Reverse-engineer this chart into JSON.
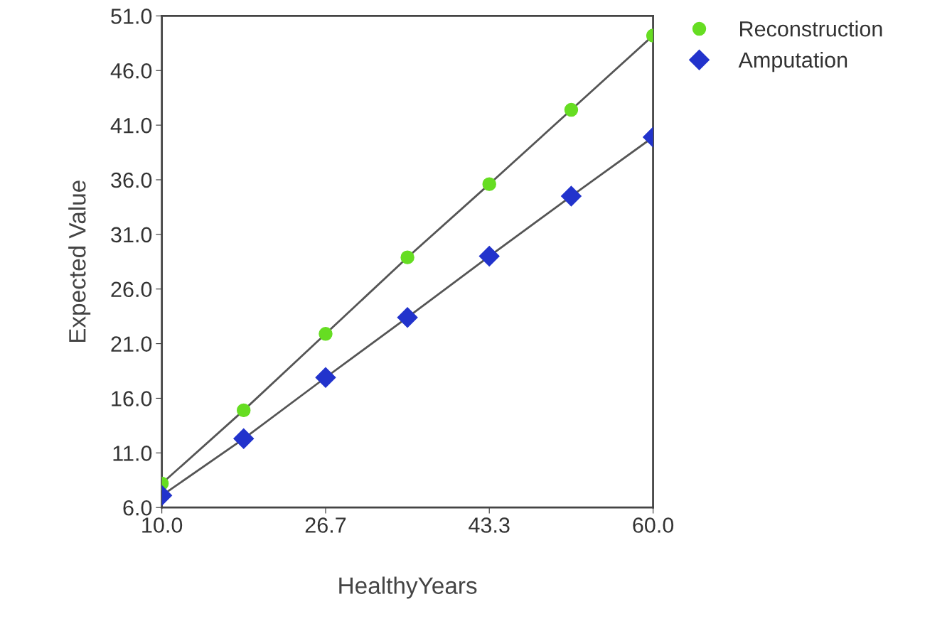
{
  "chart_data": {
    "type": "line",
    "xlabel": "HealthyYears",
    "ylabel": "Expected Value",
    "x": [
      10,
      18.33,
      26.67,
      35,
      43.33,
      51.67,
      60
    ],
    "series": [
      {
        "name": "Reconstruction",
        "color": "#66dd22",
        "marker": "circle",
        "values": [
          8.2,
          14.9,
          21.9,
          28.9,
          35.6,
          42.4,
          49.2
        ]
      },
      {
        "name": "Amputation",
        "color": "#2233cc",
        "marker": "diamond",
        "values": [
          7.1,
          12.3,
          17.9,
          23.4,
          29.0,
          34.5,
          39.9
        ]
      }
    ],
    "xlim": [
      10,
      60
    ],
    "xticks": [
      {
        "value": 10,
        "label": "10.0"
      },
      {
        "value": 26.67,
        "label": "26.7"
      },
      {
        "value": 43.33,
        "label": "43.3"
      },
      {
        "value": 60,
        "label": "60.0"
      }
    ],
    "ylim": [
      6,
      51
    ],
    "yticks": [
      {
        "value": 6,
        "label": "6.0"
      },
      {
        "value": 11,
        "label": "11.0"
      },
      {
        "value": 16,
        "label": "16.0"
      },
      {
        "value": 21,
        "label": "21.0"
      },
      {
        "value": 26,
        "label": "26.0"
      },
      {
        "value": 31,
        "label": "31.0"
      },
      {
        "value": 36,
        "label": "36.0"
      },
      {
        "value": 41,
        "label": "41.0"
      },
      {
        "value": 46,
        "label": "46.0"
      },
      {
        "value": 51,
        "label": "51.0"
      }
    ],
    "grid": false,
    "legend": "top right",
    "line_style": "solid"
  }
}
